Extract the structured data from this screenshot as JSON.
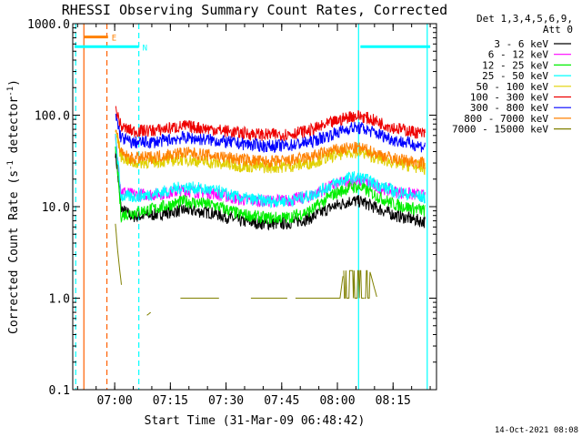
{
  "chart_data": {
    "type": "line",
    "title": "RHESSI Observing Summary Count Rates, Corrected",
    "xlabel": "Start Time (31-Mar-09 06:48:42)",
    "ylabel": "Corrected Count Rate (s",
    "ylabel_sup": "-1",
    "ylabel_mid": " detector",
    "ylabel_sup2": "-1",
    "ylabel_end": ")",
    "yscale": "log",
    "ylim": [
      0.1,
      1000
    ],
    "xlim_minutes": [
      0,
      98
    ],
    "x_ticks": [
      {
        "label": "07:00",
        "min": 11.3
      },
      {
        "label": "07:15",
        "min": 26.3
      },
      {
        "label": "07:30",
        "min": 41.3
      },
      {
        "label": "07:45",
        "min": 56.3
      },
      {
        "label": "08:00",
        "min": 71.3
      },
      {
        "label": "08:15",
        "min": 86.3
      }
    ],
    "y_ticks": [
      {
        "label": "1000.0",
        "value": 1000
      },
      {
        "label": "100.0",
        "value": 100
      },
      {
        "label": "10.0",
        "value": 10
      },
      {
        "label": "1.0",
        "value": 1
      },
      {
        "label": "0.1",
        "value": 0.1
      }
    ],
    "legend_header": [
      "Det 1,3,4,5,6,9,",
      "Att 0"
    ],
    "series": [
      {
        "name": "3 - 6 keV",
        "color": "#000000",
        "x": [
          11.5,
          13,
          16,
          22,
          30,
          38,
          45,
          52,
          58,
          64,
          70,
          75,
          78,
          82,
          87,
          95
        ],
        "y": [
          40,
          9.5,
          7.8,
          8.2,
          9.2,
          8.5,
          7.0,
          6.5,
          6.6,
          7.5,
          10,
          11.6,
          11.3,
          9.6,
          8.0,
          6.8
        ]
      },
      {
        "name": "6 - 12 keV",
        "color": "#ff00ff",
        "x": [
          11.5,
          13,
          16,
          22,
          30,
          38,
          45,
          52,
          58,
          64,
          70,
          75,
          78,
          82,
          87,
          95
        ],
        "y": [
          55,
          15,
          13.5,
          13.6,
          15,
          14,
          12,
          11.5,
          11.7,
          13,
          17,
          19.5,
          19,
          16.5,
          14.5,
          13
        ]
      },
      {
        "name": "12 - 25 keV",
        "color": "#00ee00",
        "x": [
          11.5,
          13,
          16,
          22,
          30,
          38,
          45,
          52,
          58,
          64,
          70,
          75,
          78,
          82,
          87,
          95
        ],
        "y": [
          50,
          8,
          8.6,
          9.5,
          11.5,
          10.4,
          8.3,
          7.5,
          7.6,
          9,
          13.5,
          16.5,
          16,
          13,
          10.5,
          9
        ]
      },
      {
        "name": "25 - 50 keV",
        "color": "#00ffff",
        "x": [
          11.5,
          13,
          16,
          22,
          30,
          38,
          45,
          52,
          58,
          64,
          70,
          75,
          78,
          82,
          87,
          95
        ],
        "y": [
          60,
          13,
          12.8,
          13.8,
          16.5,
          15,
          12.5,
          11.5,
          11.6,
          13.2,
          17.5,
          21,
          20.5,
          17.5,
          14.5,
          12.5
        ]
      },
      {
        "name": "50 - 100 keV",
        "color": "#e0d000",
        "x": [
          11.5,
          13,
          16,
          22,
          30,
          38,
          45,
          52,
          58,
          64,
          70,
          75,
          78,
          82,
          87,
          95
        ],
        "y": [
          70,
          36,
          30,
          31,
          33,
          30,
          28,
          27,
          27.5,
          30,
          36,
          40,
          39,
          34,
          30,
          26
        ]
      },
      {
        "name": "100 - 300 keV",
        "color": "#ee0000",
        "x": [
          11.5,
          13,
          16,
          22,
          30,
          38,
          45,
          52,
          58,
          64,
          70,
          75,
          78,
          82,
          87,
          95
        ],
        "y": [
          120,
          75,
          67,
          68,
          76,
          70,
          64,
          61,
          62,
          68,
          83,
          98,
          97,
          85,
          72,
          62
        ]
      },
      {
        "name": "300 - 800 keV",
        "color": "#0000ff",
        "x": [
          11.5,
          13,
          16,
          22,
          30,
          38,
          45,
          52,
          58,
          64,
          70,
          75,
          78,
          82,
          87,
          95
        ],
        "y": [
          100,
          57,
          50,
          51,
          57,
          53,
          49,
          46,
          46.5,
          51,
          62,
          73,
          72,
          63,
          53,
          45
        ]
      },
      {
        "name": "800 - 7000 keV",
        "color": "#ff8000",
        "x": [
          11.5,
          13,
          16,
          22,
          30,
          38,
          45,
          52,
          58,
          64,
          70,
          75,
          78,
          82,
          87,
          95
        ],
        "y": [
          75,
          38,
          33.5,
          35,
          39,
          36,
          33,
          31,
          31.5,
          35,
          41,
          44,
          43,
          38,
          33,
          30
        ]
      },
      {
        "name": "7000 - 15000 keV",
        "color": "#808000",
        "x": [
          11.5,
          12,
          12.8,
          13.5,
          20,
          21,
          29,
          30,
          38,
          48,
          49,
          56,
          60,
          68,
          72,
          73,
          75,
          77,
          78,
          80,
          82
        ],
        "y": [
          6.5,
          3.6,
          1.8,
          1.0,
          0.65,
          0.7,
          1.0,
          1.0,
          1.0,
          1.0,
          1.0,
          1.0,
          1.0,
          1.0,
          1.0,
          2.0,
          2.0,
          2.0,
          2.0,
          2.0,
          1.0
        ]
      }
    ],
    "vertical_lines": [
      {
        "min": 0.8,
        "color": "#00ffff",
        "style": "dashed"
      },
      {
        "min": 3.0,
        "color": "#ff6000",
        "style": "solid"
      },
      {
        "min": 9.2,
        "color": "#ff6000",
        "style": "dashed"
      },
      {
        "min": 17.8,
        "color": "#00ffff",
        "style": "dashed"
      },
      {
        "min": 77.0,
        "color": "#00ffff",
        "style": "solid"
      },
      {
        "min": 95.5,
        "color": "#00ffff",
        "style": "solid"
      }
    ],
    "flag_bars": [
      {
        "label": "E",
        "color": "#ff8000",
        "x0": 3.0,
        "x1": 9.5,
        "y": 716
      },
      {
        "label": "N",
        "color": "#00ffff",
        "x0": 0.5,
        "x1": 17.8,
        "y": 560
      },
      {
        "label": "",
        "color": "#00ffff",
        "x0": 77.5,
        "x1": 96.3,
        "y": 560
      }
    ],
    "footer_date": "14-Oct-2021 08:08"
  }
}
